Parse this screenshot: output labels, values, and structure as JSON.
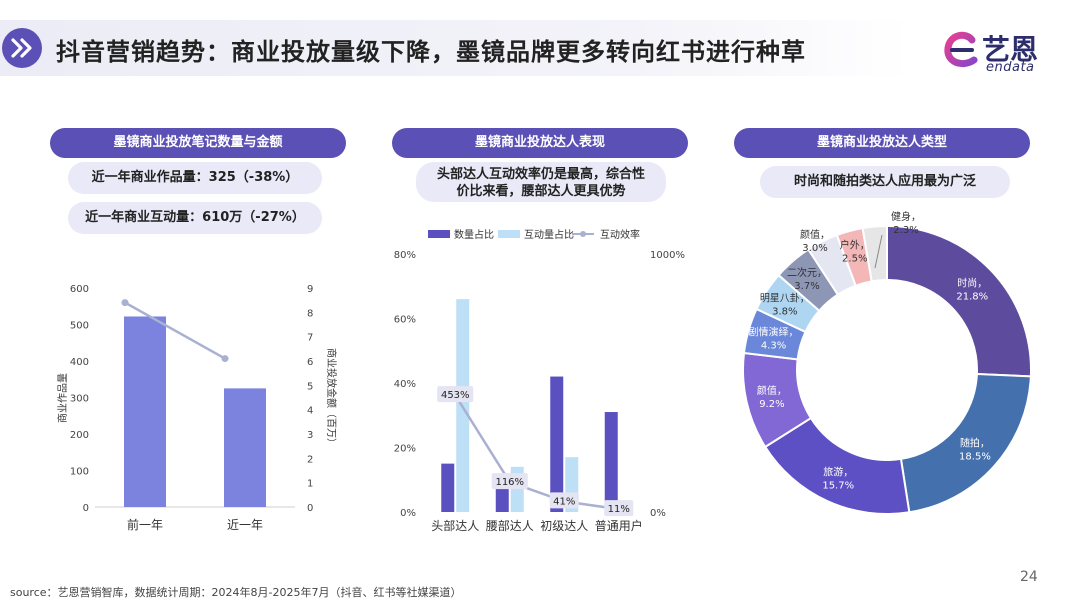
{
  "header": {
    "title": "抖音营销趋势：商业投放量级下降，墨镜品牌更多转向红书进行种草",
    "logo_cn": "艺恩",
    "logo_en": "endata"
  },
  "panels": [
    {
      "title": "墨镜商业投放笔记数量与金额",
      "notes": [
        "近一年商业作品量：325（-38%）",
        "近一年商业互动量：610万（-27%）"
      ]
    },
    {
      "title": "墨镜商业投放达人表现",
      "notes": [
        "头部达人互动效率仍是最高，综合性",
        "价比来看，腰部达人更具优势"
      ]
    },
    {
      "title": "墨镜商业投放达人类型",
      "notes": [
        "时尚和随拍类达人应用最为广泛"
      ]
    }
  ],
  "colors": {
    "accent": "#5b50b5",
    "bar1": "#7b83de",
    "bar2": "#5b50c0",
    "bar3": "#bde0f7",
    "line": "#a9b0d2"
  },
  "chart_data": [
    {
      "type": "bar",
      "categories": [
        "前一年",
        "近一年"
      ],
      "series": [
        {
          "name": "",
          "values": [
            522,
            325
          ],
          "axis": "left"
        },
        {
          "name": "",
          "values": [
            8.4,
            6.1
          ],
          "axis": "right",
          "type": "line"
        }
      ],
      "ylabel": "商业作品量",
      "ylabel_right": "商业投放金额（百万）",
      "ylim": [
        0,
        600
      ],
      "ylim_right": [
        0,
        9
      ],
      "yticks": [
        "0",
        "100",
        "200",
        "300",
        "400",
        "500",
        "600"
      ],
      "yticks_right": [
        "0",
        "1",
        "2",
        "3",
        "4",
        "5",
        "6",
        "7",
        "8",
        "9"
      ]
    },
    {
      "type": "bar",
      "categories": [
        "头部达人",
        "腰部达人",
        "初级达人",
        "普通用户"
      ],
      "series": [
        {
          "name": "数量占比",
          "values": [
            15,
            8,
            42,
            31
          ],
          "axis": "left"
        },
        {
          "name": "互动量占比",
          "values": [
            66,
            14,
            17,
            0
          ],
          "axis": "left"
        },
        {
          "name": "互动效率",
          "values": [
            453,
            116,
            41,
            11
          ],
          "axis": "right",
          "type": "line"
        }
      ],
      "line_labels": [
        "453%",
        "116%",
        "41%",
        "11%"
      ],
      "ylim": [
        0,
        80
      ],
      "ylim_right": [
        0,
        1000
      ],
      "yticks": [
        "0%",
        "20%",
        "40%",
        "60%",
        "80%"
      ],
      "yticks_right": [
        "0%",
        "1000%"
      ],
      "legend": "top"
    },
    {
      "type": "pie",
      "donut": true,
      "slices": [
        {
          "label": "时尚",
          "value": 21.8,
          "text": "21.8%",
          "color": "#5d4b9e"
        },
        {
          "label": "随拍",
          "value": 18.5,
          "text": "18.5%",
          "color": "#4470ad"
        },
        {
          "label": "旅游",
          "value": 15.7,
          "text": "15.7%",
          "color": "#5d4fc4"
        },
        {
          "label": "颜值",
          "value": 9.2,
          "text": "9.2%",
          "color": "#8168d4"
        },
        {
          "label": "剧情演绎",
          "value": 4.3,
          "text": "4.3%",
          "color": "#6a87d9"
        },
        {
          "label": "明星八卦",
          "value": 3.8,
          "text": "3.8%",
          "color": "#aed5f2"
        },
        {
          "label": "二次元",
          "value": 3.7,
          "text": "3.7%",
          "color": "#8d96b4"
        },
        {
          "label": "颜值",
          "value": 3.0,
          "text": "3.0%",
          "color": "#e4e6f2"
        },
        {
          "label": "户外",
          "value": 2.5,
          "text": "2.5%",
          "color": "#f4b7b7"
        },
        {
          "label": "健身",
          "value": 2.3,
          "text": "2.3%",
          "color": "#e6e6e6"
        }
      ]
    }
  ],
  "footer": {
    "source": "source：艺恩营销智库，数据统计周期：2024年8月-2025年7月（抖音、红书等社媒渠道）",
    "page": "24"
  }
}
